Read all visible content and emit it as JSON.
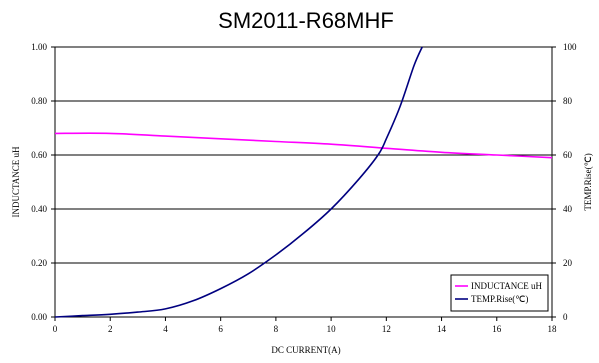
{
  "chart_data": {
    "type": "line",
    "title": "SM2011-R68MHF",
    "xlabel": "DC CURRENT(A)",
    "ylabel_left": "INDUCTANCE uH",
    "ylabel_right": "TEMP.Rise(℃)",
    "xlim": [
      0,
      18
    ],
    "ylim_left": [
      0,
      1.0
    ],
    "ylim_right": [
      0,
      100
    ],
    "x_ticks": [
      "0",
      "2",
      "4",
      "6",
      "8",
      "10",
      "12",
      "14",
      "16",
      "18"
    ],
    "y_left_ticks": [
      "0.00",
      "0.20",
      "0.40",
      "0.60",
      "0.80",
      "1.00"
    ],
    "y_right_ticks": [
      "0",
      "20",
      "40",
      "60",
      "80",
      "100"
    ],
    "grid": "horizontal",
    "legend_position": "bottom-right",
    "series": [
      {
        "name": "INDUCTANCE uH",
        "axis": "left",
        "color": "#ff00ff",
        "x": [
          0,
          2,
          4,
          6,
          8,
          10,
          12,
          14,
          16,
          18
        ],
        "y": [
          0.68,
          0.68,
          0.67,
          0.66,
          0.65,
          0.64,
          0.625,
          0.61,
          0.6,
          0.59
        ]
      },
      {
        "name": "TEMP.Rise(℃)",
        "axis": "right",
        "color": "#000080",
        "x": [
          0,
          1,
          2,
          3,
          4,
          5,
          6,
          7,
          8,
          9,
          10,
          11,
          11.7,
          12,
          12.5,
          13,
          13.3
        ],
        "y": [
          0,
          0.5,
          1,
          1.8,
          3,
          6,
          10.5,
          16,
          23,
          31,
          40,
          51,
          60,
          66,
          78,
          93,
          100
        ]
      }
    ]
  }
}
